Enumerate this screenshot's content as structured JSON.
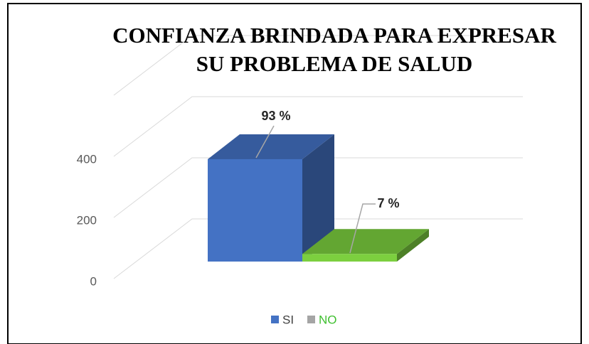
{
  "chart_data": {
    "type": "bar3d",
    "title": "CONFIANZA BRINDADA PARA EXPRESAR SU PROBLEMA DE SALUD",
    "categories": [
      "SI",
      "NO"
    ],
    "values": [
      335,
      25
    ],
    "value_labels": [
      "93 %",
      "7 %"
    ],
    "colors": [
      "#4472c4",
      "#7ccf3f"
    ],
    "legend_colors": [
      "#4472c4",
      "#a5a5a5"
    ],
    "legend_text_colors": [
      "#404040",
      "#3fbf2f"
    ],
    "ylim": [
      0,
      600
    ],
    "yticks": [
      0,
      200,
      400
    ],
    "grid": true
  }
}
